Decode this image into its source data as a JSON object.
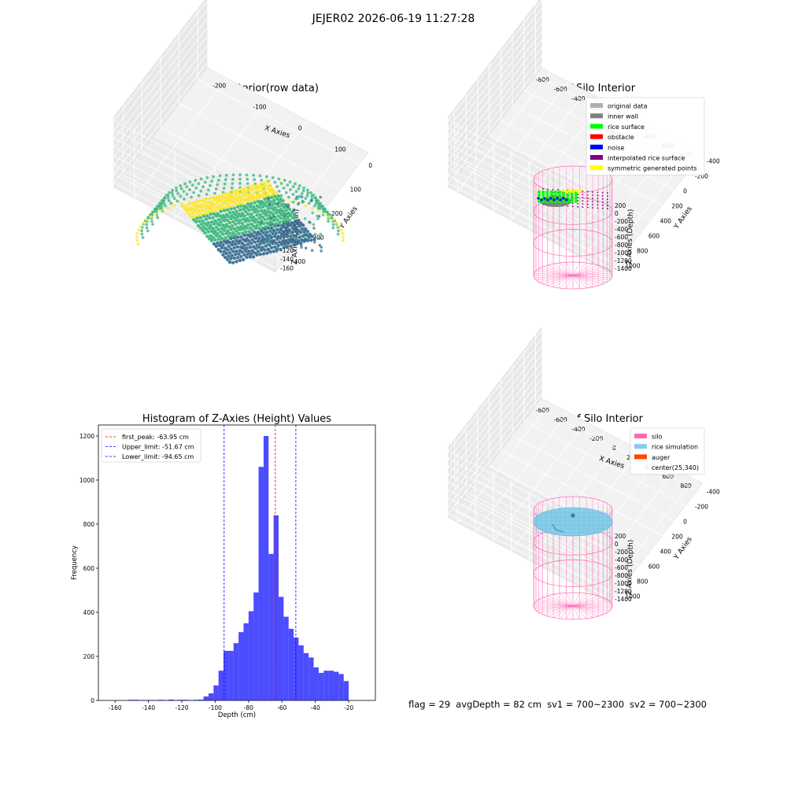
{
  "suptitle": "JEJER02 2026-06-19 11:27:28",
  "status": {
    "flag": "flag = 29",
    "avg_depth": "avgDepth = 82 cm",
    "sv1": "sv1 = 700~2300",
    "sv2": "sv2 = 700~2300"
  },
  "chart_data": [
    {
      "id": "raw",
      "type": "scatter",
      "title": "3D Plot of Silo Interior(row data)",
      "xlabel": "X Axies",
      "ylabel": "Y Axies",
      "zlabel": "Z Axies (Depth)",
      "xticks": [
        "-200",
        "-100",
        "0",
        "100"
      ],
      "yticks": [
        "0",
        "100",
        "200",
        "300",
        "400"
      ],
      "zticks": [
        "-20",
        "-40",
        "-60",
        "-80",
        "-100",
        "-120",
        "-140",
        "-160"
      ],
      "colormap": [
        "#440154",
        "#31688e",
        "#35b779",
        "#fde725"
      ]
    },
    {
      "id": "classify",
      "type": "scatter",
      "title": "3D classify of Silo Interior",
      "xlabel": "X Axies",
      "ylabel": "Y Axies",
      "zlabel": "Z Axies (Depth)",
      "xticks": [
        "-800",
        "-600",
        "-400",
        "-200",
        "0",
        "200",
        "400",
        "600",
        "800"
      ],
      "yticks": [
        "-400",
        "-200",
        "0",
        "200",
        "400",
        "600",
        "800",
        "1000"
      ],
      "zticks": [
        "200",
        "0",
        "-200",
        "-400",
        "-600",
        "-800",
        "-1000",
        "-1200",
        "-1400"
      ],
      "legend": [
        {
          "name": "original data",
          "color": "#b0b0b0"
        },
        {
          "name": "inner wall",
          "color": "#808080"
        },
        {
          "name": "rice surface",
          "color": "#00ff00"
        },
        {
          "name": "obstacle",
          "color": "#ff0000"
        },
        {
          "name": "noise",
          "color": "#0000ff"
        },
        {
          "name": "interpolated rice surface",
          "color": "#800080"
        },
        {
          "name": "symmetric generated points",
          "color": "#ffff00"
        }
      ],
      "silo_color": "#ff69b4"
    },
    {
      "id": "histogram",
      "type": "bar",
      "title": "Histogram of Z-Axies (Height) Values",
      "xlabel": "Depth (cm)",
      "ylabel": "Frequency",
      "xlim": [
        -170,
        -4
      ],
      "ylim": [
        0,
        1250
      ],
      "xticks": [
        -160,
        -140,
        -120,
        -100,
        -80,
        -60,
        -40,
        -20
      ],
      "yticks": [
        0,
        200,
        400,
        600,
        800,
        1000,
        1200
      ],
      "bin_width": 3,
      "bin_start": -152,
      "values": [
        3,
        3,
        2,
        2,
        2,
        2,
        3,
        2,
        4,
        2,
        3,
        3,
        2,
        3,
        4,
        18,
        32,
        68,
        135,
        225,
        225,
        260,
        310,
        350,
        405,
        490,
        1060,
        1200,
        665,
        840,
        470,
        380,
        325,
        285,
        250,
        215,
        195,
        150,
        125,
        135,
        135,
        130,
        120,
        88
      ],
      "bar_color": "#0000ff",
      "lines": [
        {
          "name": "first_peak: -63.95 cm",
          "value": -63.95,
          "color": "#ff0000"
        },
        {
          "name": "Upper_limit: -51.67 cm",
          "value": -51.67,
          "color": "#0000ff"
        },
        {
          "name": "Lower_limit: -94.65 cm",
          "value": -94.65,
          "color": "#0000ff"
        }
      ]
    },
    {
      "id": "simulation",
      "type": "scatter",
      "title": "3D simulation of Silo Interior",
      "xlabel": "X Axies",
      "ylabel": "Y Axies",
      "zlabel": "Z Axies (Depth)",
      "xticks": [
        "-800",
        "-600",
        "-400",
        "-200",
        "0",
        "200",
        "400",
        "600",
        "800"
      ],
      "yticks": [
        "-400",
        "-200",
        "0",
        "200",
        "400",
        "600",
        "800",
        "1000"
      ],
      "zticks": [
        "200",
        "0",
        "-200",
        "-400",
        "-600",
        "-800",
        "-1000",
        "-1200",
        "-1400"
      ],
      "legend": [
        {
          "name": "silo",
          "color": "#ff69b4"
        },
        {
          "name": "rice simulation",
          "color": "#87ceeb"
        },
        {
          "name": "auger",
          "color": "#ff4500"
        },
        {
          "name": "center(25,340)",
          "color": ""
        }
      ]
    }
  ]
}
